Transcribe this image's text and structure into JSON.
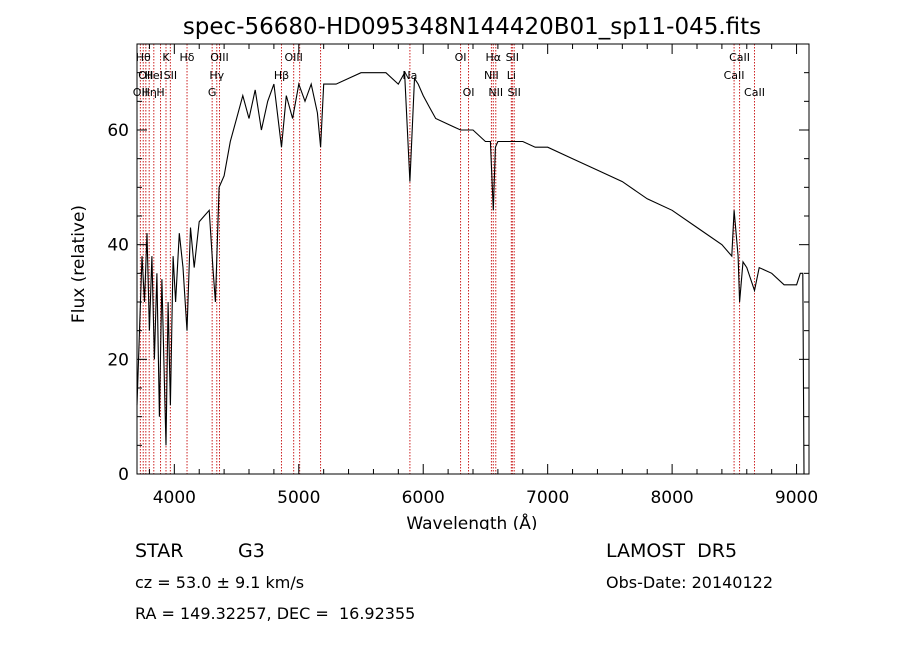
{
  "chart_data": {
    "type": "line",
    "title": "spec-56680-HD095348N144420B01_sp11-045.fits",
    "xlabel": "Wavelength (Å)",
    "ylabel": "Flux (relative)",
    "xlim": [
      3700,
      9100
    ],
    "ylim": [
      0,
      75
    ],
    "x_ticks": [
      4000,
      5000,
      6000,
      7000,
      8000,
      9000
    ],
    "y_ticks": [
      0,
      20,
      40,
      60
    ],
    "grid": false,
    "spectrum": {
      "x": [
        3700,
        3720,
        3740,
        3760,
        3780,
        3800,
        3820,
        3840,
        3860,
        3880,
        3900,
        3920,
        3933,
        3950,
        3968,
        3990,
        4010,
        4040,
        4070,
        4102,
        4130,
        4160,
        4200,
        4240,
        4280,
        4310,
        4330,
        4360,
        4400,
        4450,
        4500,
        4550,
        4600,
        4650,
        4700,
        4750,
        4800,
        4861,
        4900,
        4950,
        5000,
        5050,
        5100,
        5150,
        5175,
        5200,
        5300,
        5400,
        5500,
        5600,
        5700,
        5800,
        5850,
        5893,
        5930,
        5960,
        6000,
        6050,
        6100,
        6200,
        6300,
        6400,
        6500,
        6540,
        6563,
        6580,
        6600,
        6700,
        6800,
        6900,
        7000,
        7200,
        7400,
        7600,
        7800,
        8000,
        8200,
        8400,
        8480,
        8498,
        8530,
        8542,
        8570,
        8600,
        8662,
        8700,
        8800,
        8900,
        9000,
        9030,
        9050,
        9060
      ],
      "y": [
        12,
        25,
        38,
        30,
        42,
        25,
        38,
        20,
        35,
        10,
        34,
        16,
        5,
        30,
        12,
        38,
        30,
        42,
        36,
        25,
        43,
        36,
        44,
        45,
        46,
        36,
        30,
        50,
        52,
        58,
        62,
        66,
        62,
        67,
        60,
        65,
        68,
        57,
        66,
        62,
        68,
        65,
        68,
        63,
        57,
        68,
        68,
        69,
        70,
        70,
        70,
        68,
        70,
        51,
        69,
        68,
        66,
        64,
        62,
        61,
        60,
        60,
        58,
        58,
        46,
        57,
        58,
        58,
        58,
        57,
        57,
        55,
        53,
        51,
        48,
        46,
        43,
        40,
        38,
        46,
        38,
        30,
        37,
        36,
        32,
        36,
        35,
        33,
        33,
        35,
        35,
        0
      ]
    },
    "line_markers": [
      {
        "x": 3727,
        "row": 3,
        "label": "OII"
      },
      {
        "x": 3750,
        "row": 1,
        "label": "Hθ"
      },
      {
        "x": 3771,
        "row": 2,
        "label": "OII"
      },
      {
        "x": 3798,
        "row": 3,
        "label": "Hη"
      },
      {
        "x": 3835,
        "row": 2,
        "label": "HeI"
      },
      {
        "x": 3889,
        "row": 3,
        "label": "H"
      },
      {
        "x": 3933,
        "row": 1,
        "label": "K"
      },
      {
        "x": 3968,
        "row": 2,
        "label": "SII"
      },
      {
        "x": 4102,
        "row": 1,
        "label": "Hδ"
      },
      {
        "x": 4304,
        "row": 3,
        "label": "G"
      },
      {
        "x": 4341,
        "row": 2,
        "label": "Hγ"
      },
      {
        "x": 4363,
        "row": 1,
        "label": "OIII"
      },
      {
        "x": 4861,
        "row": 2,
        "label": "Hβ"
      },
      {
        "x": 4959,
        "row": 1,
        "label": "OIII"
      },
      {
        "x": 5007,
        "row": 1,
        "label": ""
      },
      {
        "x": 5175,
        "row": 3,
        "label": ""
      },
      {
        "x": 5893,
        "row": 2,
        "label": "Na"
      },
      {
        "x": 6300,
        "row": 1,
        "label": "OI"
      },
      {
        "x": 6364,
        "row": 3,
        "label": "OI"
      },
      {
        "x": 6548,
        "row": 2,
        "label": "NII"
      },
      {
        "x": 6563,
        "row": 1,
        "label": "Hα"
      },
      {
        "x": 6583,
        "row": 3,
        "label": "NII"
      },
      {
        "x": 6708,
        "row": 2,
        "label": "Li"
      },
      {
        "x": 6716,
        "row": 1,
        "label": "SII"
      },
      {
        "x": 6731,
        "row": 3,
        "label": "SII"
      },
      {
        "x": 8498,
        "row": 2,
        "label": "CaII"
      },
      {
        "x": 8542,
        "row": 1,
        "label": "CaII"
      },
      {
        "x": 8662,
        "row": 3,
        "label": "CaII"
      }
    ]
  },
  "info": {
    "object_type": "STAR",
    "subclass": "G3",
    "survey": "LAMOST  DR5",
    "cz_text": "cz = 53.0 ± 9.1 km/s",
    "obs_date": "Obs-Date: 20140122",
    "coords": "RA = 149.32257, DEC =  16.92355"
  },
  "colors": {
    "spectrum": "#000000",
    "marker": "#cc2222"
  }
}
